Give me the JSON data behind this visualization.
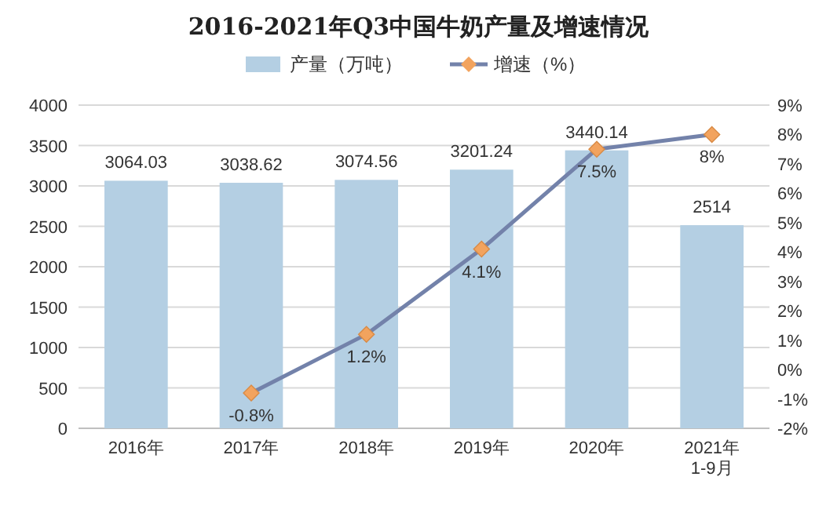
{
  "chart_data": {
    "type": "bar",
    "title": "2016-2021年Q3中国牛奶产量及增速情况",
    "categories": [
      "2016年",
      "2017年",
      "2018年",
      "2019年",
      "2020年",
      "2021年1-9月"
    ],
    "series": [
      {
        "name": "产量（万吨）",
        "color": "#b4cfe3",
        "values": [
          3064.03,
          3038.62,
          3074.56,
          3201.24,
          3440.14,
          2514
        ],
        "value_labels": [
          "3064.03",
          "3038.62",
          "3074.56",
          "3201.24",
          "3440.14",
          "2514"
        ]
      },
      {
        "name": "增速（%）",
        "type": "line",
        "axis": "y2",
        "color": "#7382aa",
        "colors": [
          "#f2a35e",
          "#f2a35e",
          "#f2a35e",
          "#f2a35e",
          "#f2a35e",
          "#f2a35e"
        ],
        "marker": "diamond",
        "values": [
          null,
          -0.8,
          1.2,
          4.1,
          7.5,
          8
        ],
        "value_labels": [
          null,
          "-0.8%",
          "1.2%",
          "4.1%",
          "7.5%",
          "8%"
        ]
      }
    ],
    "ylim": [
      0,
      4000
    ],
    "yticks": [
      0,
      500,
      1000,
      1500,
      2000,
      2500,
      3000,
      3500,
      4000
    ],
    "y2lim": [
      -2,
      9
    ],
    "y2ticks": [
      {
        "value": -2,
        "label": "-2%"
      },
      {
        "value": -1,
        "label": "-1%"
      },
      {
        "value": 0,
        "label": "0%"
      },
      {
        "value": 1,
        "label": "1%"
      },
      {
        "value": 2,
        "label": "2%"
      },
      {
        "value": 3,
        "label": "3%"
      },
      {
        "value": 4,
        "label": "4%"
      },
      {
        "value": 5,
        "label": "5%"
      },
      {
        "value": 6,
        "label": "6%"
      },
      {
        "value": 7,
        "label": "7%"
      },
      {
        "value": 8,
        "label": "8%"
      },
      {
        "value": 9,
        "label": "9%"
      }
    ],
    "grid": "y",
    "legend": "top"
  }
}
